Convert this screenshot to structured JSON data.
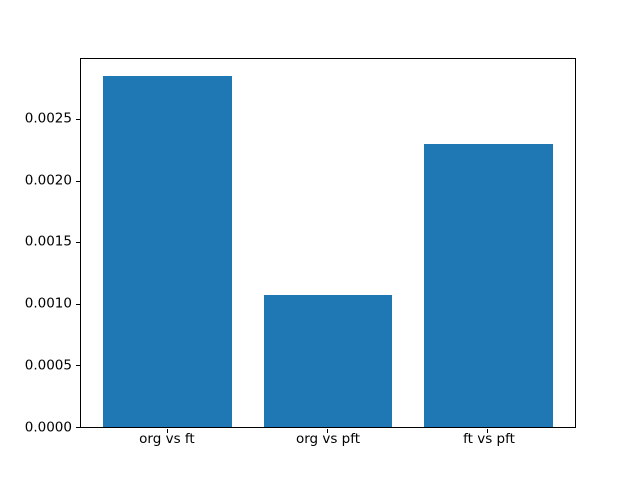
{
  "figure": {
    "background": "#ffffff",
    "axis_color": "#000000",
    "text_color": "#000000"
  },
  "chart_data": {
    "type": "bar",
    "title": "",
    "xlabel": "",
    "ylabel": "",
    "categories": [
      "org vs ft",
      "org vs pft",
      "ft vs pft"
    ],
    "values": [
      0.00285,
      0.00107,
      0.0023
    ],
    "bar_color": "#1f77b4",
    "bar_width": 0.8,
    "xlim": [
      -0.54,
      2.54
    ],
    "ylim": [
      0,
      0.00299
    ],
    "yticks": [
      0.0,
      0.0005,
      0.001,
      0.0015,
      0.002,
      0.0025
    ],
    "ytick_labels": [
      "0.0000",
      "0.0005",
      "0.0010",
      "0.0015",
      "0.0020",
      "0.0025"
    ],
    "grid": false,
    "legend": null
  }
}
